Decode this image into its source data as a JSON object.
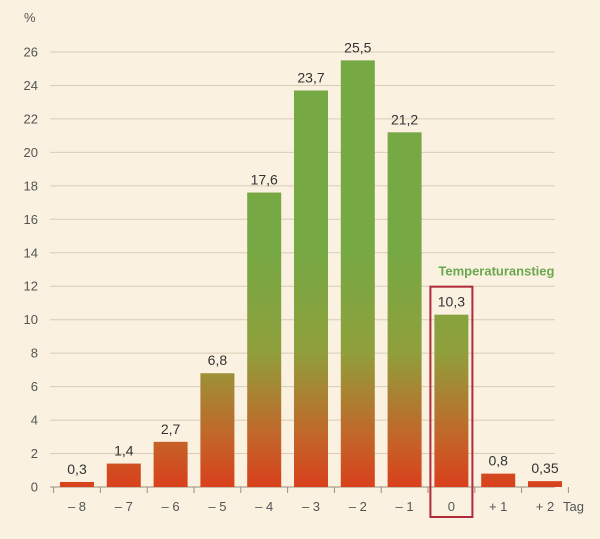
{
  "chart_data": {
    "type": "bar",
    "ylabel": "%",
    "xlabel": "Tag",
    "ylim": [
      0,
      26
    ],
    "yticks": [
      0,
      2,
      4,
      6,
      8,
      10,
      12,
      14,
      16,
      18,
      20,
      22,
      24,
      26
    ],
    "grid": true,
    "categories": [
      "– 8",
      "– 7",
      "– 6",
      "– 5",
      "– 4",
      "– 3",
      "– 2",
      "– 1",
      "0",
      "+ 1",
      "+ 2"
    ],
    "values": [
      0.3,
      1.4,
      2.7,
      6.8,
      17.6,
      23.7,
      25.5,
      21.2,
      10.3,
      0.8,
      0.35
    ],
    "value_labels": [
      "0,3",
      "1,4",
      "2,7",
      "6,8",
      "17,6",
      "23,7",
      "25,5",
      "21,2",
      "10,3",
      "0,8",
      "0,35"
    ],
    "annotation": {
      "text": "Temperaturanstieg",
      "category": "0"
    },
    "colors": {
      "bar_top": "#76a843",
      "bar_bottom": "#d9401c",
      "highlight_frame": "#b02a3a",
      "annotation_text": "#6aa84f",
      "background": "#fbf1e0",
      "grid": "#d9cdb8"
    }
  }
}
